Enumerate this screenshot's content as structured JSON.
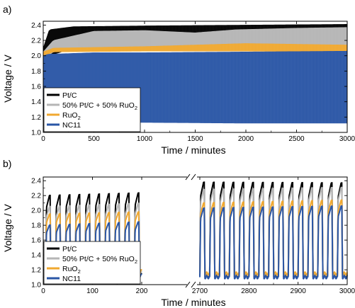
{
  "panels": [
    {
      "tag": "a)",
      "chart_data": {
        "type": "line",
        "xlabel": "Time / minutes",
        "ylabel": "Voltage / V",
        "xlim": [
          0,
          3000
        ],
        "ylim": [
          1.0,
          2.45
        ],
        "xticks": [
          "0",
          "500",
          "1000",
          "1500",
          "2000",
          "2500",
          "3000"
        ],
        "yticks": [
          "1.0",
          "1.2",
          "1.4",
          "1.6",
          "1.8",
          "2.0",
          "2.2",
          "2.4"
        ],
        "legend_position": "bottom-left",
        "series": [
          {
            "name": "Pt/C",
            "color": "#000000",
            "upper": [
              [
                0,
                2.1
              ],
              [
                60,
                2.34
              ],
              [
                300,
                2.38
              ],
              [
                1000,
                2.39
              ],
              [
                2000,
                2.4
              ],
              [
                3000,
                2.41
              ]
            ],
            "lower": [
              [
                0,
                1.95
              ],
              [
                60,
                2.0
              ],
              [
                300,
                2.1
              ],
              [
                1000,
                2.18
              ],
              [
                1500,
                2.3
              ],
              [
                1900,
                2.32
              ],
              [
                2500,
                2.25
              ],
              [
                3000,
                2.28
              ]
            ]
          },
          {
            "name": "50% Pt/C + 50% RuO",
            "sub": "2",
            "color": "#b5b5b5",
            "upper": [
              [
                0,
                2.05
              ],
              [
                100,
                2.2
              ],
              [
                500,
                2.32
              ],
              [
                1000,
                2.33
              ],
              [
                1500,
                2.3
              ],
              [
                1900,
                2.34
              ],
              [
                2500,
                2.36
              ],
              [
                3000,
                2.37
              ]
            ],
            "lower": [
              [
                0,
                1.95
              ],
              [
                100,
                2.05
              ],
              [
                500,
                2.08
              ],
              [
                1000,
                2.1
              ],
              [
                2000,
                2.12
              ],
              [
                3000,
                2.11
              ]
            ]
          },
          {
            "name": "RuO",
            "sub": "2",
            "color": "#f0a830",
            "upper": [
              [
                0,
                2.05
              ],
              [
                100,
                2.1
              ],
              [
                1000,
                2.12
              ],
              [
                2000,
                2.16
              ],
              [
                3000,
                2.14
              ]
            ],
            "lower": [
              [
                0,
                2.0
              ],
              [
                100,
                2.05
              ],
              [
                1000,
                2.06
              ],
              [
                2000,
                2.06
              ],
              [
                3000,
                2.05
              ]
            ]
          },
          {
            "name": "NC11",
            "color": "#2a56a6",
            "upper": [
              [
                0,
                2.0
              ],
              [
                50,
                2.02
              ],
              [
                500,
                2.04
              ],
              [
                1000,
                2.04
              ],
              [
                2000,
                2.05
              ],
              [
                3000,
                2.06
              ]
            ],
            "lower": [
              [
                0,
                1.18
              ],
              [
                50,
                1.15
              ],
              [
                500,
                1.13
              ],
              [
                1000,
                1.13
              ],
              [
                2000,
                1.12
              ],
              [
                3000,
                1.12
              ]
            ]
          }
        ]
      }
    },
    {
      "tag": "b)",
      "chart_data": {
        "type": "line",
        "xlabel": "Time / minutes",
        "ylabel": "Voltage / V",
        "axis_break": true,
        "segments": [
          [
            0,
            200
          ],
          [
            2700,
            3000
          ]
        ],
        "ylim": [
          1.0,
          2.45
        ],
        "xticks": [
          "0",
          "100",
          "200",
          "2700",
          "2800",
          "2900",
          "3000"
        ],
        "yticks": [
          "1.0",
          "1.2",
          "1.4",
          "1.6",
          "1.8",
          "2.0",
          "2.2",
          "2.4"
        ],
        "legend_position": "bottom-left",
        "cycle_period_minutes": 20,
        "series": [
          {
            "name": "Pt/C",
            "color": "#000000",
            "high": [
              2.2,
              2.38,
              2.37
            ],
            "low": [
              1.13,
              1.12,
              1.12
            ]
          },
          {
            "name": "50% Pt/C + 50% RuO",
            "sub": "2",
            "color": "#b5b5b5",
            "high": [
              2.05,
              2.28,
              2.31
            ],
            "low": [
              1.16,
              1.14,
              1.14
            ]
          },
          {
            "name": "RuO",
            "sub": "2",
            "color": "#f0a830",
            "high": [
              1.95,
              2.1,
              2.14
            ],
            "low": [
              1.18,
              1.15,
              1.15
            ]
          },
          {
            "name": "NC11",
            "color": "#2a56a6",
            "high": [
              1.8,
              2.03,
              2.06
            ],
            "low": [
              1.12,
              1.1,
              1.1
            ]
          }
        ]
      }
    }
  ]
}
